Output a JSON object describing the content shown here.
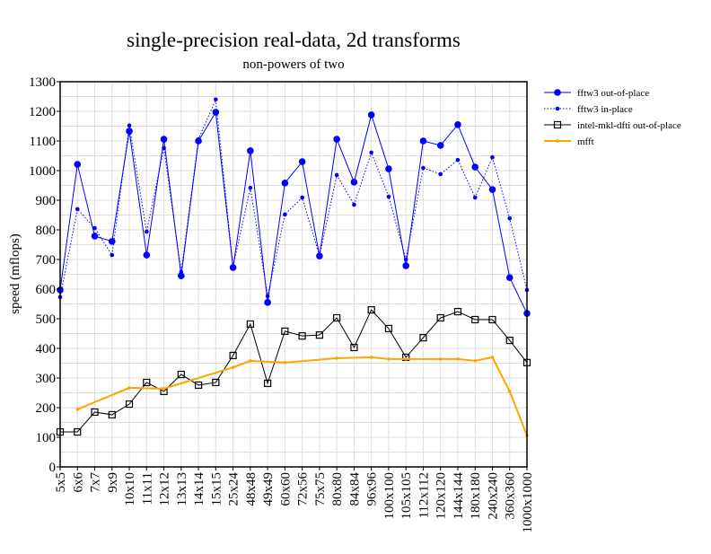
{
  "chart_data": {
    "type": "line",
    "title": "single-precision real-data, 2d transforms",
    "subtitle": "non-powers of two",
    "xlabel": "",
    "ylabel": "speed (mflops)",
    "ylim": [
      0,
      1300
    ],
    "yticks": [
      0,
      100,
      200,
      300,
      400,
      500,
      600,
      700,
      800,
      900,
      1000,
      1100,
      1200,
      1300
    ],
    "grid": true,
    "legend_position": "outside-top-right",
    "categories": [
      "5x5",
      "6x6",
      "7x7",
      "9x9",
      "10x10",
      "11x11",
      "12x12",
      "13x13",
      "14x14",
      "15x15",
      "25x24",
      "48x48",
      "49x49",
      "60x60",
      "72x56",
      "75x75",
      "80x80",
      "84x84",
      "96x96",
      "100x100",
      "105x105",
      "112x112",
      "120x120",
      "144x144",
      "180x180",
      "240x240",
      "360x360",
      "1000x1000"
    ],
    "series": [
      {
        "name": "fftw3 out-of-place",
        "color": "#0000ff",
        "style": "solid-dot",
        "values": [
          597,
          1021,
          779,
          761,
          1133,
          715,
          1106,
          645,
          1100,
          1197,
          673,
          1067,
          555,
          958,
          1030,
          712,
          1106,
          961,
          1188,
          1006,
          679,
          1100,
          1085,
          1155,
          1012,
          936,
          639,
          518
        ]
      },
      {
        "name": "fftw3 in-place",
        "color": "#0000ff",
        "style": "dotted-dot",
        "values": [
          573,
          870,
          806,
          715,
          1152,
          794,
          1076,
          658,
          1106,
          1240,
          676,
          942,
          576,
          852,
          909,
          712,
          985,
          885,
          1061,
          912,
          700,
          1009,
          988,
          1036,
          909,
          1045,
          839,
          597
        ]
      },
      {
        "name": "intel-mkl-dfti out-of-place",
        "color": "#000000",
        "style": "square",
        "values": [
          118,
          118,
          185,
          176,
          212,
          285,
          255,
          312,
          276,
          285,
          376,
          482,
          282,
          458,
          442,
          445,
          503,
          403,
          530,
          467,
          370,
          436,
          503,
          524,
          497,
          497,
          427,
          352
        ]
      },
      {
        "name": "mfft",
        "color": "#ffa500",
        "style": "small-dot",
        "values": [
          null,
          194,
          null,
          null,
          267,
          null,
          264,
          null,
          null,
          null,
          336,
          358,
          null,
          352,
          null,
          null,
          367,
          null,
          370,
          364,
          364,
          null,
          364,
          364,
          358,
          370,
          255,
          106
        ]
      }
    ]
  }
}
